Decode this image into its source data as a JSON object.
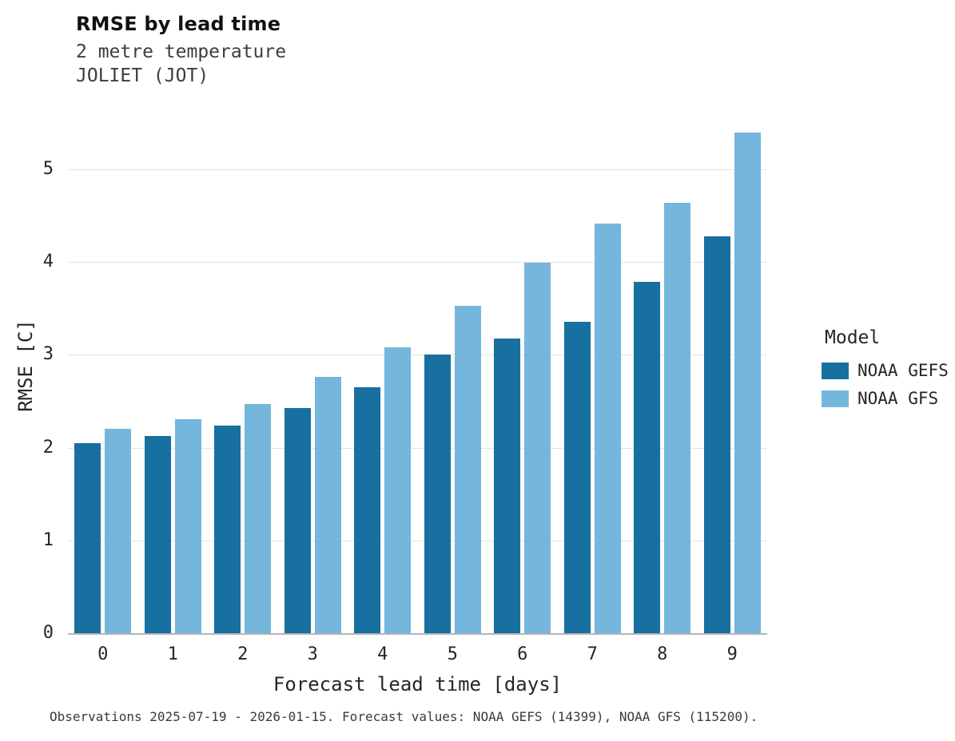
{
  "chart_data": {
    "type": "bar",
    "title": "RMSE by lead time",
    "subtitle": "2 metre temperature",
    "subtitle2": "JOLIET (JOT)",
    "xlabel": "Forecast lead time [days]",
    "ylabel": "RMSE [C]",
    "legend_title": "Model",
    "categories": [
      "0",
      "1",
      "2",
      "3",
      "4",
      "5",
      "6",
      "7",
      "8",
      "9"
    ],
    "series": [
      {
        "name": "NOAA GEFS",
        "color": "#17709f",
        "values": [
          2.05,
          2.13,
          2.24,
          2.43,
          2.65,
          3.0,
          3.18,
          3.36,
          3.79,
          4.28
        ]
      },
      {
        "name": "NOAA GFS",
        "color": "#74b6dc",
        "values": [
          2.2,
          2.31,
          2.47,
          2.76,
          3.08,
          3.53,
          3.99,
          4.42,
          4.64,
          5.4
        ]
      }
    ],
    "ylim": [
      0,
      5.75
    ],
    "yticks": [
      0,
      1,
      2,
      3,
      4,
      5
    ],
    "grid": "horizontal",
    "legend_position": "right",
    "caption": "Observations 2025-07-19 - 2026-01-15. Forecast values: NOAA GEFS (14399), NOAA GFS (115200)."
  }
}
